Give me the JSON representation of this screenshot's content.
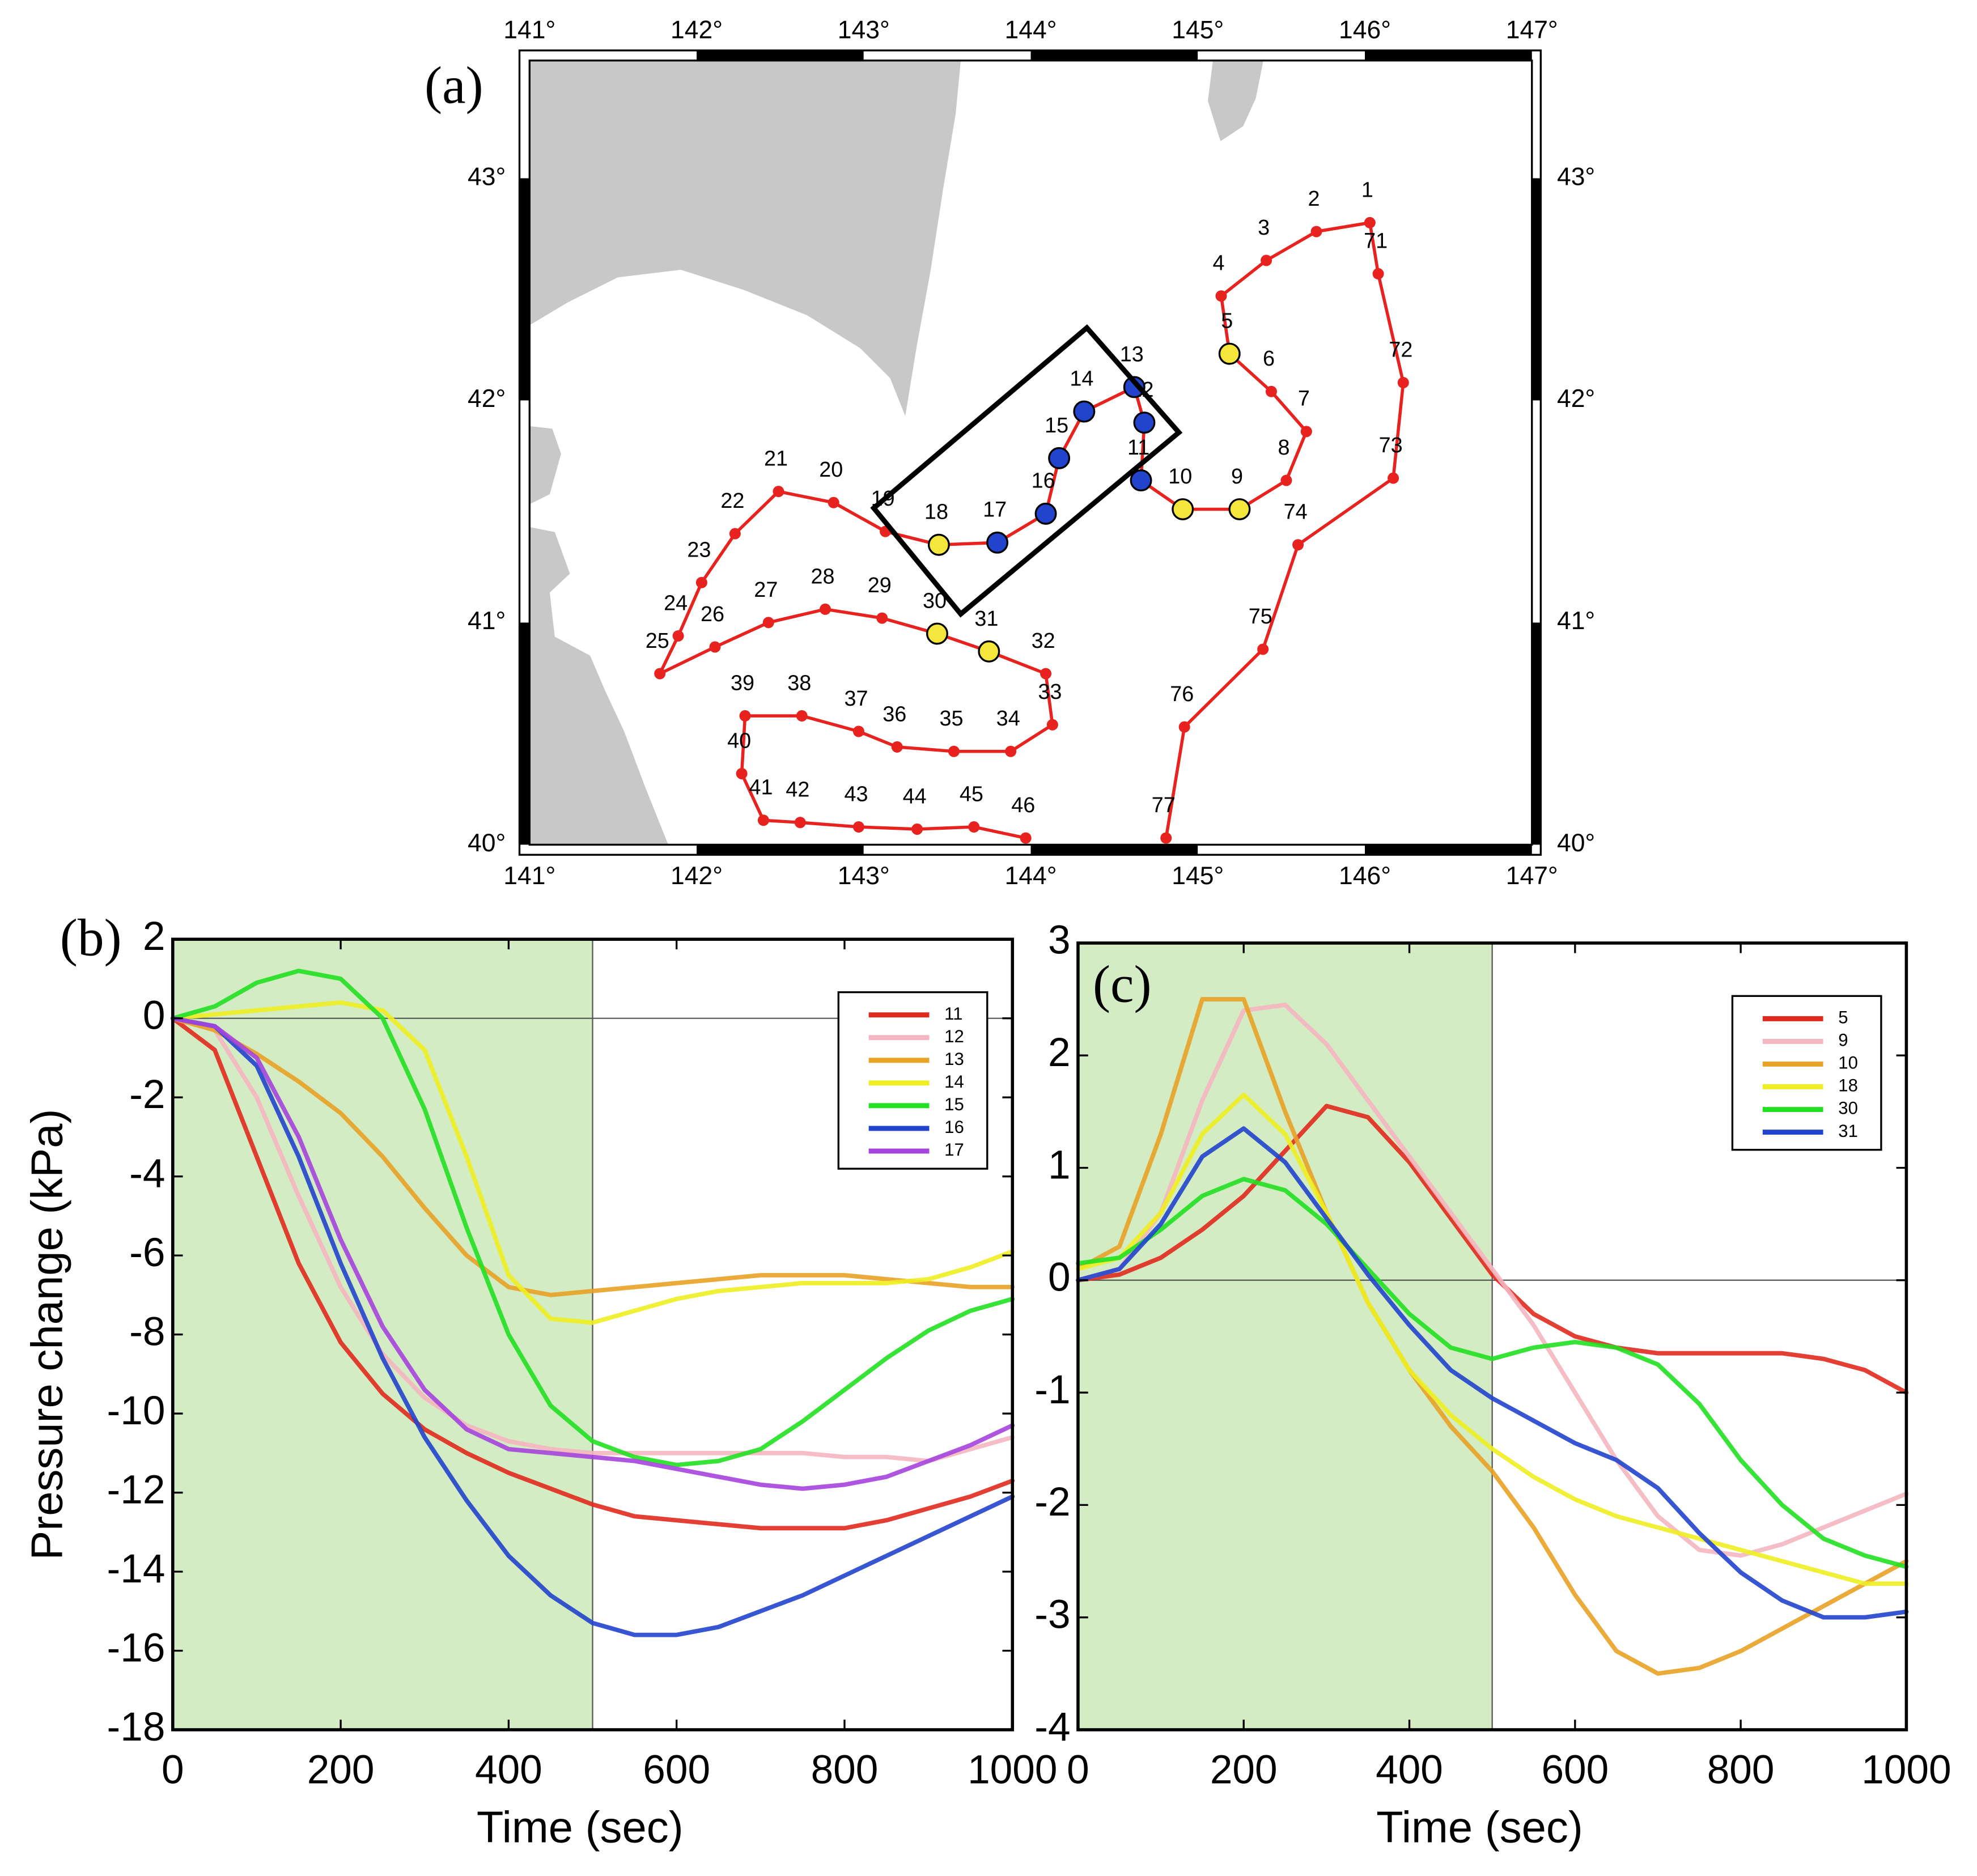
{
  "map": {
    "panel_label": "(a)",
    "track_color": "#e8231f",
    "xlim": [
      141,
      147
    ],
    "ylim": [
      40,
      43.53
    ],
    "xticks": [
      {
        "value": 141,
        "label": "141°"
      },
      {
        "value": 142,
        "label": "142°"
      },
      {
        "value": 143,
        "label": "143°"
      },
      {
        "value": 144,
        "label": "144°"
      },
      {
        "value": 145,
        "label": "145°"
      },
      {
        "value": 146,
        "label": "146°"
      },
      {
        "value": 147,
        "label": "147°"
      }
    ],
    "yticks": [
      {
        "value": 40,
        "label": "40°"
      },
      {
        "value": 41,
        "label": "41°"
      },
      {
        "value": 42,
        "label": "42°"
      },
      {
        "value": 43,
        "label": "43°"
      }
    ],
    "stations": [
      {
        "label": "77",
        "lon": 144.81,
        "lat": 40.03
      },
      {
        "label": "76",
        "lon": 144.92,
        "lat": 40.53
      },
      {
        "label": "75",
        "lon": 145.39,
        "lat": 40.88
      },
      {
        "label": "74",
        "lon": 145.6,
        "lat": 41.35
      },
      {
        "label": "73",
        "lon": 146.17,
        "lat": 41.65
      },
      {
        "label": "72",
        "lon": 146.23,
        "lat": 42.08
      },
      {
        "label": "71",
        "lon": 146.08,
        "lat": 42.57
      },
      {
        "label": "1",
        "lon": 146.03,
        "lat": 42.8
      },
      {
        "label": "2",
        "lon": 145.71,
        "lat": 42.76
      },
      {
        "label": "3",
        "lon": 145.41,
        "lat": 42.63
      },
      {
        "label": "4",
        "lon": 145.14,
        "lat": 42.47
      },
      {
        "label": "5",
        "lon": 145.19,
        "lat": 42.21,
        "color": "#f5e63c"
      },
      {
        "label": "6",
        "lon": 145.44,
        "lat": 42.04
      },
      {
        "label": "7",
        "lon": 145.65,
        "lat": 41.86
      },
      {
        "label": "8",
        "lon": 145.53,
        "lat": 41.64
      },
      {
        "label": "9",
        "lon": 145.25,
        "lat": 41.51,
        "color": "#f5e63c"
      },
      {
        "label": "10",
        "lon": 144.91,
        "lat": 41.51,
        "color": "#f5e63c"
      },
      {
        "label": "11",
        "lon": 144.66,
        "lat": 41.64,
        "color": "#2244cc"
      },
      {
        "label": "12",
        "lon": 144.68,
        "lat": 41.9,
        "color": "#2244cc"
      },
      {
        "label": "13",
        "lon": 144.62,
        "lat": 42.06,
        "color": "#2244cc"
      },
      {
        "label": "14",
        "lon": 144.32,
        "lat": 41.95,
        "color": "#2244cc"
      },
      {
        "label": "15",
        "lon": 144.17,
        "lat": 41.74,
        "color": "#2244cc"
      },
      {
        "label": "16",
        "lon": 144.09,
        "lat": 41.49,
        "color": "#2244cc"
      },
      {
        "label": "17",
        "lon": 143.8,
        "lat": 41.36,
        "color": "#2244cc"
      },
      {
        "label": "18",
        "lon": 143.45,
        "lat": 41.35,
        "color": "#f5e63c"
      },
      {
        "label": "19",
        "lon": 143.13,
        "lat": 41.41
      },
      {
        "label": "20",
        "lon": 142.82,
        "lat": 41.54
      },
      {
        "label": "21",
        "lon": 142.49,
        "lat": 41.59
      },
      {
        "label": "22",
        "lon": 142.23,
        "lat": 41.4
      },
      {
        "label": "23",
        "lon": 142.03,
        "lat": 41.18
      },
      {
        "label": "24",
        "lon": 141.89,
        "lat": 40.94
      },
      {
        "label": "25",
        "lon": 141.78,
        "lat": 40.77
      },
      {
        "label": "26",
        "lon": 142.11,
        "lat": 40.89
      },
      {
        "label": "27",
        "lon": 142.43,
        "lat": 41.0
      },
      {
        "label": "28",
        "lon": 142.77,
        "lat": 41.06
      },
      {
        "label": "29",
        "lon": 143.11,
        "lat": 41.02
      },
      {
        "label": "30",
        "lon": 143.44,
        "lat": 40.95,
        "color": "#f5e63c"
      },
      {
        "label": "31",
        "lon": 143.75,
        "lat": 40.87,
        "color": "#f5e63c"
      },
      {
        "label": "32",
        "lon": 144.09,
        "lat": 40.77
      },
      {
        "label": "33",
        "lon": 144.13,
        "lat": 40.54
      },
      {
        "label": "34",
        "lon": 143.88,
        "lat": 40.42
      },
      {
        "label": "35",
        "lon": 143.54,
        "lat": 40.42
      },
      {
        "label": "36",
        "lon": 143.2,
        "lat": 40.44
      },
      {
        "label": "37",
        "lon": 142.97,
        "lat": 40.51
      },
      {
        "label": "38",
        "lon": 142.63,
        "lat": 40.58
      },
      {
        "label": "39",
        "lon": 142.29,
        "lat": 40.58
      },
      {
        "label": "40",
        "lon": 142.27,
        "lat": 40.32
      },
      {
        "label": "41",
        "lon": 142.4,
        "lat": 40.11
      },
      {
        "label": "42",
        "lon": 142.62,
        "lat": 40.1
      },
      {
        "label": "43",
        "lon": 142.97,
        "lat": 40.08
      },
      {
        "label": "44",
        "lon": 143.32,
        "lat": 40.07
      },
      {
        "label": "45",
        "lon": 143.66,
        "lat": 40.08
      },
      {
        "label": "46",
        "lon": 143.97,
        "lat": 40.03
      }
    ]
  },
  "chart_data": [
    {
      "type": "line",
      "panel_label": "(b)",
      "x_label": "Time (sec)",
      "y_label": "Pressure change (kPa)",
      "xlim": [
        0,
        1000
      ],
      "ylim": [
        -18,
        2
      ],
      "xticks": [
        0,
        200,
        400,
        600,
        800,
        1000
      ],
      "yticks": [
        -18,
        -16,
        -14,
        -12,
        -10,
        -8,
        -6,
        -4,
        -2,
        0,
        2
      ],
      "legend": "upper right",
      "zero_line": true,
      "shade": {
        "xlim": [
          0,
          500
        ],
        "color": "#d3ecc3"
      },
      "x": [
        0,
        50,
        100,
        150,
        200,
        250,
        300,
        350,
        400,
        450,
        500,
        550,
        600,
        650,
        700,
        750,
        800,
        850,
        900,
        950,
        1000
      ],
      "series": [
        {
          "name": "11",
          "color": "#e02a1e",
          "values": [
            0,
            -0.8,
            -3.5,
            -6.2,
            -8.2,
            -9.5,
            -10.4,
            -11.0,
            -11.5,
            -11.9,
            -12.3,
            -12.6,
            -12.7,
            -12.8,
            -12.9,
            -12.9,
            -12.9,
            -12.7,
            -12.4,
            -12.1,
            -11.7
          ]
        },
        {
          "name": "12",
          "color": "#f4b6c0",
          "values": [
            0,
            -0.3,
            -2.0,
            -4.5,
            -6.8,
            -8.5,
            -9.6,
            -10.3,
            -10.7,
            -10.9,
            -11.0,
            -11.0,
            -11.0,
            -11.0,
            -11.0,
            -11.0,
            -11.1,
            -11.1,
            -11.2,
            -10.9,
            -10.6
          ]
        },
        {
          "name": "13",
          "color": "#e8a226",
          "values": [
            0,
            -0.3,
            -0.9,
            -1.6,
            -2.4,
            -3.5,
            -4.8,
            -6.0,
            -6.8,
            -7.0,
            -6.9,
            -6.8,
            -6.7,
            -6.6,
            -6.5,
            -6.5,
            -6.5,
            -6.6,
            -6.7,
            -6.8,
            -6.8
          ]
        },
        {
          "name": "14",
          "color": "#eeee22",
          "values": [
            0,
            0.1,
            0.2,
            0.3,
            0.4,
            0.2,
            -0.8,
            -3.5,
            -6.5,
            -7.6,
            -7.7,
            -7.4,
            -7.1,
            -6.9,
            -6.8,
            -6.7,
            -6.7,
            -6.7,
            -6.6,
            -6.3,
            -5.9
          ]
        },
        {
          "name": "15",
          "color": "#22e022",
          "values": [
            0,
            0.3,
            0.9,
            1.2,
            1.0,
            0,
            -2.3,
            -5.3,
            -8.0,
            -9.8,
            -10.7,
            -11.1,
            -11.3,
            -11.2,
            -10.9,
            -10.2,
            -9.4,
            -8.6,
            -7.9,
            -7.4,
            -7.1
          ]
        },
        {
          "name": "16",
          "color": "#2244cc",
          "values": [
            0,
            -0.2,
            -1.2,
            -3.5,
            -6.2,
            -8.6,
            -10.6,
            -12.2,
            -13.6,
            -14.6,
            -15.3,
            -15.6,
            -15.6,
            -15.4,
            -15.0,
            -14.6,
            -14.1,
            -13.6,
            -13.1,
            -12.6,
            -12.1
          ]
        },
        {
          "name": "17",
          "color": "#a544dd",
          "values": [
            0,
            -0.2,
            -1.0,
            -3.0,
            -5.6,
            -7.8,
            -9.4,
            -10.4,
            -10.9,
            -11.0,
            -11.1,
            -11.2,
            -11.4,
            -11.6,
            -11.8,
            -11.9,
            -11.8,
            -11.6,
            -11.2,
            -10.8,
            -10.3
          ]
        }
      ]
    },
    {
      "type": "line",
      "panel_label": "(c)",
      "x_label": "Time (sec)",
      "xlim": [
        0,
        1000
      ],
      "ylim": [
        -4,
        3
      ],
      "xticks": [
        0,
        200,
        400,
        600,
        800,
        1000
      ],
      "yticks": [
        -4,
        -3,
        -2,
        -1,
        0,
        1,
        2,
        3
      ],
      "legend": "upper right",
      "zero_line": true,
      "shade": {
        "xlim": [
          0,
          500
        ],
        "color": "#d3ecc3"
      },
      "x": [
        0,
        50,
        100,
        150,
        200,
        250,
        300,
        350,
        400,
        450,
        500,
        550,
        600,
        650,
        700,
        750,
        800,
        850,
        900,
        950,
        1000
      ],
      "series": [
        {
          "name": "5",
          "color": "#e02a1e",
          "values": [
            0,
            0.05,
            0.2,
            0.45,
            0.75,
            1.15,
            1.55,
            1.45,
            1.05,
            0.55,
            0.05,
            -0.3,
            -0.5,
            -0.6,
            -0.65,
            -0.65,
            -0.65,
            -0.65,
            -0.7,
            -0.8,
            -1.0
          ]
        },
        {
          "name": "9",
          "color": "#f4b6c0",
          "values": [
            0,
            0.1,
            0.6,
            1.6,
            2.4,
            2.45,
            2.1,
            1.6,
            1.1,
            0.6,
            0.1,
            -0.4,
            -1.0,
            -1.6,
            -2.1,
            -2.4,
            -2.45,
            -2.35,
            -2.2,
            -2.05,
            -1.9
          ]
        },
        {
          "name": "10",
          "color": "#e8a226",
          "values": [
            0.1,
            0.3,
            1.3,
            2.5,
            2.5,
            1.5,
            0.6,
            -0.2,
            -0.8,
            -1.3,
            -1.7,
            -2.2,
            -2.8,
            -3.3,
            -3.5,
            -3.45,
            -3.3,
            -3.1,
            -2.9,
            -2.7,
            -2.5
          ]
        },
        {
          "name": "18",
          "color": "#eeee22",
          "values": [
            0.1,
            0.2,
            0.6,
            1.3,
            1.65,
            1.3,
            0.6,
            -0.2,
            -0.8,
            -1.2,
            -1.5,
            -1.75,
            -1.95,
            -2.1,
            -2.2,
            -2.3,
            -2.4,
            -2.5,
            -2.6,
            -2.7,
            -2.7
          ]
        },
        {
          "name": "30",
          "color": "#22e022",
          "values": [
            0.15,
            0.2,
            0.45,
            0.75,
            0.9,
            0.8,
            0.5,
            0.1,
            -0.3,
            -0.6,
            -0.7,
            -0.6,
            -0.55,
            -0.6,
            -0.75,
            -1.1,
            -1.6,
            -2.0,
            -2.3,
            -2.45,
            -2.55
          ]
        },
        {
          "name": "31",
          "color": "#2244cc",
          "values": [
            0,
            0.1,
            0.5,
            1.1,
            1.35,
            1.05,
            0.55,
            0.05,
            -0.4,
            -0.8,
            -1.05,
            -1.25,
            -1.45,
            -1.6,
            -1.85,
            -2.25,
            -2.6,
            -2.85,
            -3.0,
            -3.0,
            -2.95
          ]
        }
      ]
    }
  ]
}
